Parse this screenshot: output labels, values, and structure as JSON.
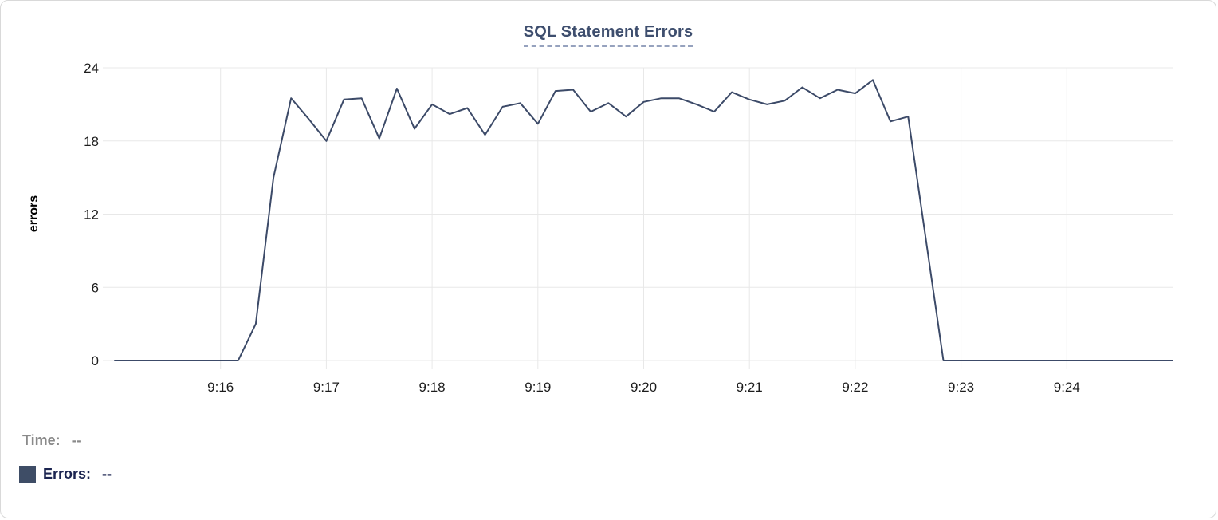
{
  "chart_data": {
    "type": "line",
    "title": "SQL Statement Errors",
    "ylabel": "errors",
    "xlabel": "",
    "ylim": [
      0,
      24
    ],
    "y_ticks": [
      0,
      6,
      12,
      18,
      24
    ],
    "x_range": [
      "9:15:00",
      "9:25:00"
    ],
    "duration_minutes": 10,
    "interval_seconds": 10,
    "grid": true,
    "x_ticks": [
      {
        "label": "9:16",
        "minute_offset": 1
      },
      {
        "label": "9:17",
        "minute_offset": 2
      },
      {
        "label": "9:18",
        "minute_offset": 3
      },
      {
        "label": "9:19",
        "minute_offset": 4
      },
      {
        "label": "9:20",
        "minute_offset": 5
      },
      {
        "label": "9:21",
        "minute_offset": 6
      },
      {
        "label": "9:22",
        "minute_offset": 7
      },
      {
        "label": "9:23",
        "minute_offset": 8
      },
      {
        "label": "9:24",
        "minute_offset": 9
      }
    ],
    "times": [
      "9:15:00",
      "9:15:10",
      "9:15:20",
      "9:15:30",
      "9:15:40",
      "9:15:50",
      "9:16:00",
      "9:16:10",
      "9:16:20",
      "9:16:30",
      "9:16:40",
      "9:16:50",
      "9:17:00",
      "9:17:10",
      "9:17:20",
      "9:17:30",
      "9:17:40",
      "9:17:50",
      "9:18:00",
      "9:18:10",
      "9:18:20",
      "9:18:30",
      "9:18:40",
      "9:18:50",
      "9:19:00",
      "9:19:10",
      "9:19:20",
      "9:19:30",
      "9:19:40",
      "9:19:50",
      "9:20:00",
      "9:20:10",
      "9:20:20",
      "9:20:30",
      "9:20:40",
      "9:20:50",
      "9:21:00",
      "9:21:10",
      "9:21:20",
      "9:21:30",
      "9:21:40",
      "9:21:50",
      "9:22:00",
      "9:22:10",
      "9:22:20",
      "9:22:30",
      "9:22:40",
      "9:22:50",
      "9:23:00",
      "9:23:10",
      "9:23:20",
      "9:23:30",
      "9:23:40",
      "9:23:50",
      "9:24:00",
      "9:24:10",
      "9:24:20",
      "9:24:30",
      "9:24:40",
      "9:24:50",
      "9:25:00"
    ],
    "values": [
      0,
      0,
      0,
      0,
      0,
      0,
      0,
      0,
      3,
      15,
      21.5,
      19.8,
      18,
      21.4,
      21.5,
      18.2,
      22.3,
      19,
      21,
      20.2,
      20.7,
      18.5,
      20.8,
      21.1,
      19.4,
      22.1,
      22.2,
      20.4,
      21.1,
      20,
      21.2,
      21.5,
      21.5,
      21,
      20.4,
      22,
      21.4,
      21,
      21.3,
      22.4,
      21.5,
      22.2,
      21.9,
      23,
      19.6,
      20,
      10,
      0,
      0,
      0,
      0,
      0,
      0,
      0,
      0,
      0,
      0,
      0,
      0,
      0,
      0
    ],
    "line_color": "#3c4a68",
    "grid_color": "#e8e8e8",
    "legend_position": "bottom-left"
  },
  "legend": {
    "time_label": "Time:",
    "time_value": "--",
    "errors_label": "Errors:",
    "errors_value": "--",
    "swatch_color": "#3e4d66"
  }
}
